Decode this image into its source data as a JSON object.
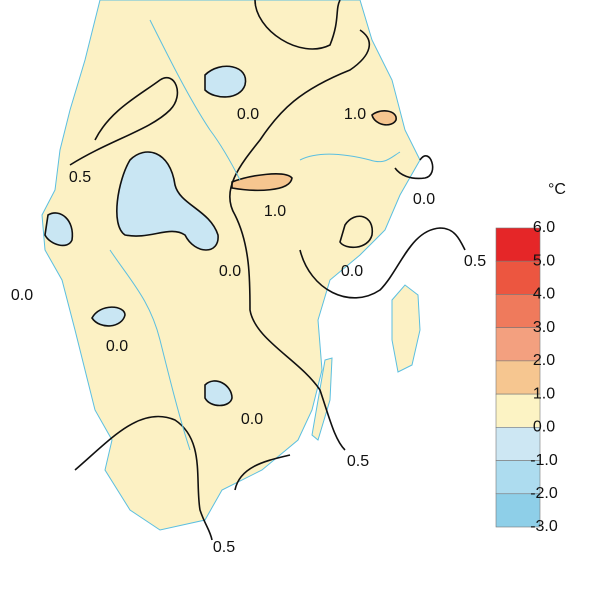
{
  "legend": {
    "unit": "°C",
    "boundaries": [
      "6.0",
      "5.0",
      "4.0",
      "3.0",
      "2.0",
      "1.0",
      "0.0",
      "-1.0",
      "-2.0",
      "-3.0"
    ],
    "colors": [
      "#e52628",
      "#ec5640",
      "#ef7a5c",
      "#f3a07f",
      "#f6c690",
      "#fcf3c4",
      "#cde7f3",
      "#addcef",
      "#8ecfe8"
    ]
  },
  "map": {
    "land_color": "#fcf1c4",
    "contour_labels": [
      "0.0",
      "1.0",
      "0.5",
      "1.0",
      "0.0",
      "0.0",
      "0.0",
      "0.5",
      "0.0",
      "0.0",
      "0.0",
      "0.5",
      "0.5"
    ]
  }
}
